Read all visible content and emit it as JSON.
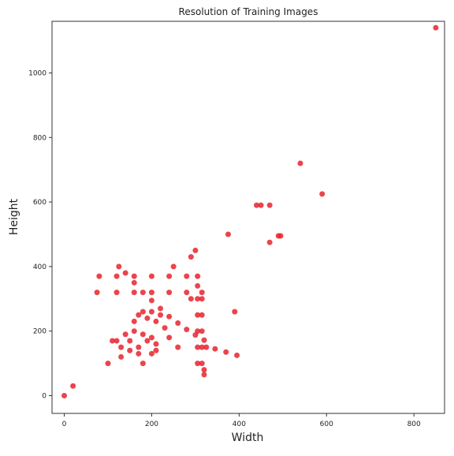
{
  "chart_data": {
    "type": "scatter",
    "title": "Resolution of Training Images",
    "xlabel": "Width",
    "ylabel": "Height",
    "xlim": [
      -28,
      870
    ],
    "ylim": [
      -55,
      1160
    ],
    "xticks": [
      0,
      200,
      400,
      600,
      800
    ],
    "yticks": [
      0,
      200,
      400,
      600,
      800,
      1000
    ],
    "xtick_labels": [
      "0",
      "200",
      "400",
      "600",
      "800"
    ],
    "ytick_labels": [
      "0",
      "200",
      "400",
      "600",
      "800",
      "1000"
    ],
    "grid": false,
    "legend": "none",
    "series": [
      {
        "color": "#e8232e",
        "points": [
          {
            "x": 0,
            "y": 0
          },
          {
            "x": 20,
            "y": 30
          },
          {
            "x": 100,
            "y": 100
          },
          {
            "x": 110,
            "y": 170
          },
          {
            "x": 120,
            "y": 170
          },
          {
            "x": 130,
            "y": 150
          },
          {
            "x": 140,
            "y": 190
          },
          {
            "x": 150,
            "y": 170
          },
          {
            "x": 160,
            "y": 200
          },
          {
            "x": 170,
            "y": 150
          },
          {
            "x": 180,
            "y": 190
          },
          {
            "x": 190,
            "y": 170
          },
          {
            "x": 200,
            "y": 180
          },
          {
            "x": 210,
            "y": 160
          },
          {
            "x": 160,
            "y": 230
          },
          {
            "x": 170,
            "y": 250
          },
          {
            "x": 180,
            "y": 260
          },
          {
            "x": 190,
            "y": 240
          },
          {
            "x": 200,
            "y": 260
          },
          {
            "x": 210,
            "y": 230
          },
          {
            "x": 220,
            "y": 250
          },
          {
            "x": 230,
            "y": 210
          },
          {
            "x": 180,
            "y": 100
          },
          {
            "x": 200,
            "y": 130
          },
          {
            "x": 210,
            "y": 140
          },
          {
            "x": 130,
            "y": 120
          },
          {
            "x": 150,
            "y": 140
          },
          {
            "x": 170,
            "y": 130
          },
          {
            "x": 125,
            "y": 400
          },
          {
            "x": 140,
            "y": 380
          },
          {
            "x": 160,
            "y": 350
          },
          {
            "x": 180,
            "y": 320
          },
          {
            "x": 200,
            "y": 295
          },
          {
            "x": 220,
            "y": 270
          },
          {
            "x": 240,
            "y": 245
          },
          {
            "x": 260,
            "y": 225
          },
          {
            "x": 280,
            "y": 205
          },
          {
            "x": 300,
            "y": 188
          },
          {
            "x": 320,
            "y": 172
          },
          {
            "x": 80,
            "y": 370
          },
          {
            "x": 120,
            "y": 370
          },
          {
            "x": 160,
            "y": 370
          },
          {
            "x": 200,
            "y": 370
          },
          {
            "x": 240,
            "y": 370
          },
          {
            "x": 280,
            "y": 370
          },
          {
            "x": 305,
            "y": 370
          },
          {
            "x": 75,
            "y": 320
          },
          {
            "x": 120,
            "y": 320
          },
          {
            "x": 160,
            "y": 320
          },
          {
            "x": 200,
            "y": 320
          },
          {
            "x": 240,
            "y": 320
          },
          {
            "x": 280,
            "y": 320
          },
          {
            "x": 315,
            "y": 320
          },
          {
            "x": 305,
            "y": 340
          },
          {
            "x": 305,
            "y": 300
          },
          {
            "x": 305,
            "y": 250
          },
          {
            "x": 305,
            "y": 200
          },
          {
            "x": 305,
            "y": 150
          },
          {
            "x": 305,
            "y": 100
          },
          {
            "x": 315,
            "y": 300
          },
          {
            "x": 315,
            "y": 250
          },
          {
            "x": 315,
            "y": 200
          },
          {
            "x": 315,
            "y": 150
          },
          {
            "x": 315,
            "y": 100
          },
          {
            "x": 320,
            "y": 80
          },
          {
            "x": 320,
            "y": 65
          },
          {
            "x": 240,
            "y": 180
          },
          {
            "x": 260,
            "y": 150
          },
          {
            "x": 250,
            "y": 400
          },
          {
            "x": 290,
            "y": 430
          },
          {
            "x": 300,
            "y": 450
          },
          {
            "x": 290,
            "y": 300
          },
          {
            "x": 325,
            "y": 150
          },
          {
            "x": 345,
            "y": 145
          },
          {
            "x": 370,
            "y": 135
          },
          {
            "x": 395,
            "y": 125
          },
          {
            "x": 375,
            "y": 500
          },
          {
            "x": 390,
            "y": 260
          },
          {
            "x": 440,
            "y": 590
          },
          {
            "x": 450,
            "y": 590
          },
          {
            "x": 470,
            "y": 590
          },
          {
            "x": 470,
            "y": 475
          },
          {
            "x": 490,
            "y": 495
          },
          {
            "x": 495,
            "y": 495
          },
          {
            "x": 540,
            "y": 720
          },
          {
            "x": 590,
            "y": 625
          },
          {
            "x": 850,
            "y": 1140
          }
        ]
      }
    ]
  }
}
